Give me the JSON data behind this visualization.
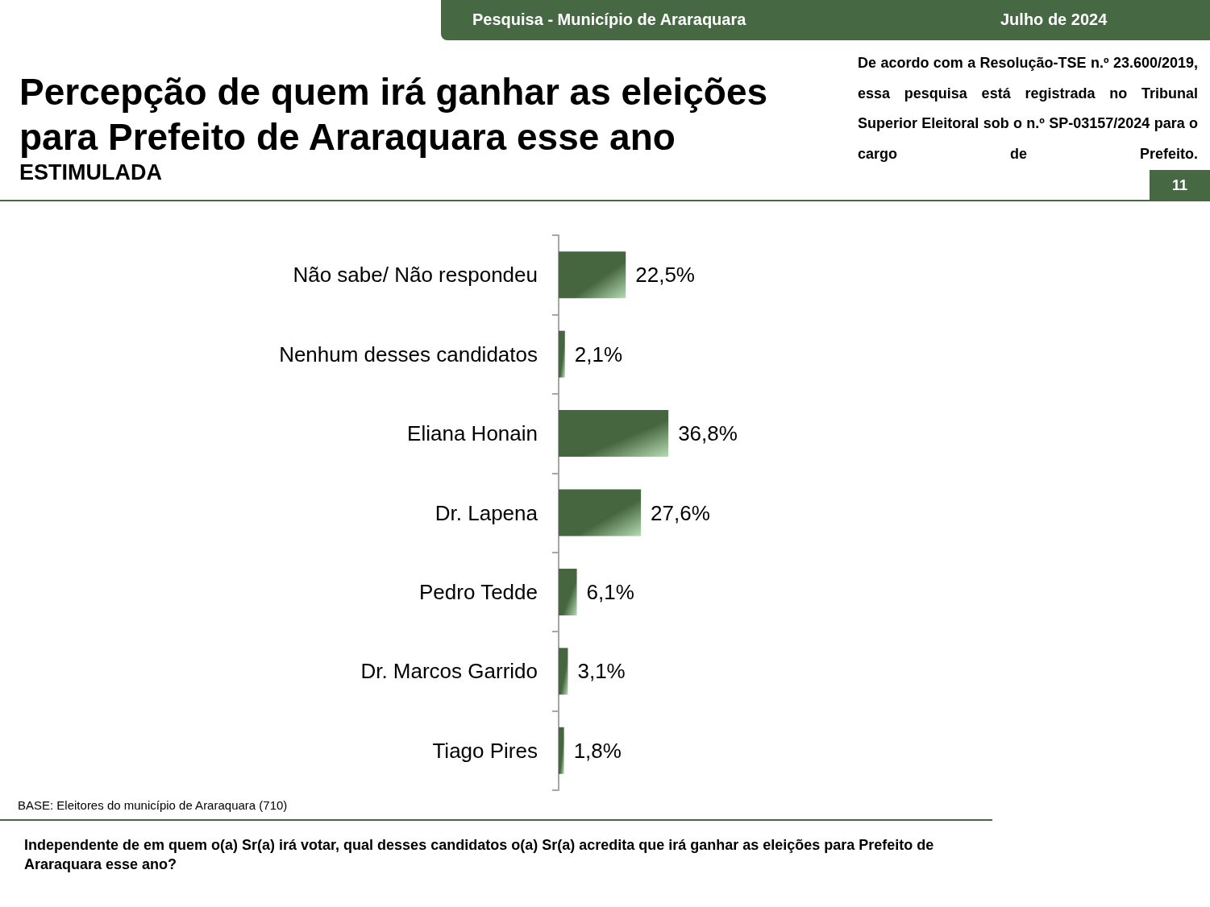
{
  "chart_data": {
    "type": "bar",
    "orientation": "horizontal",
    "title": "Percepção de quem irá ganhar as eleições para Prefeito de Araraquara esse ano",
    "subtitle": "ESTIMULADA",
    "categories": [
      "Não sabe/ Não respondeu",
      "Nenhum desses candidatos",
      "Eliana Honain",
      "Dr. Lapena",
      "Pedro Tedde",
      "Dr. Marcos Garrido",
      "Tiago Pires"
    ],
    "values": [
      22.5,
      2.1,
      36.8,
      27.6,
      6.1,
      3.1,
      1.8
    ],
    "value_labels": [
      "22,5%",
      "2,1%",
      "36,8%",
      "27,6%",
      "6,1%",
      "3,1%",
      "1,8%"
    ],
    "color": "#46663f",
    "tick_labels": "y",
    "annotations": [
      "Pesquisa - Município de Araraquara",
      "Julho de 2024",
      "De acordo com a Resolução-TSE n.º 23.600/2019, essa pesquisa está registrada no Tribunal Superior Eleitoral sob o n.º SP-03157/2024 para o cargo de Prefeito.",
      "11",
      "BASE: Eleitores do município de Araraquara (710)",
      "Independente de em quem o(a) Sr(a) irá votar, qual desses candidatos o(a) Sr(a) acredita que irá ganhar as eleições para Prefeito de Araraquara esse ano?"
    ]
  }
}
